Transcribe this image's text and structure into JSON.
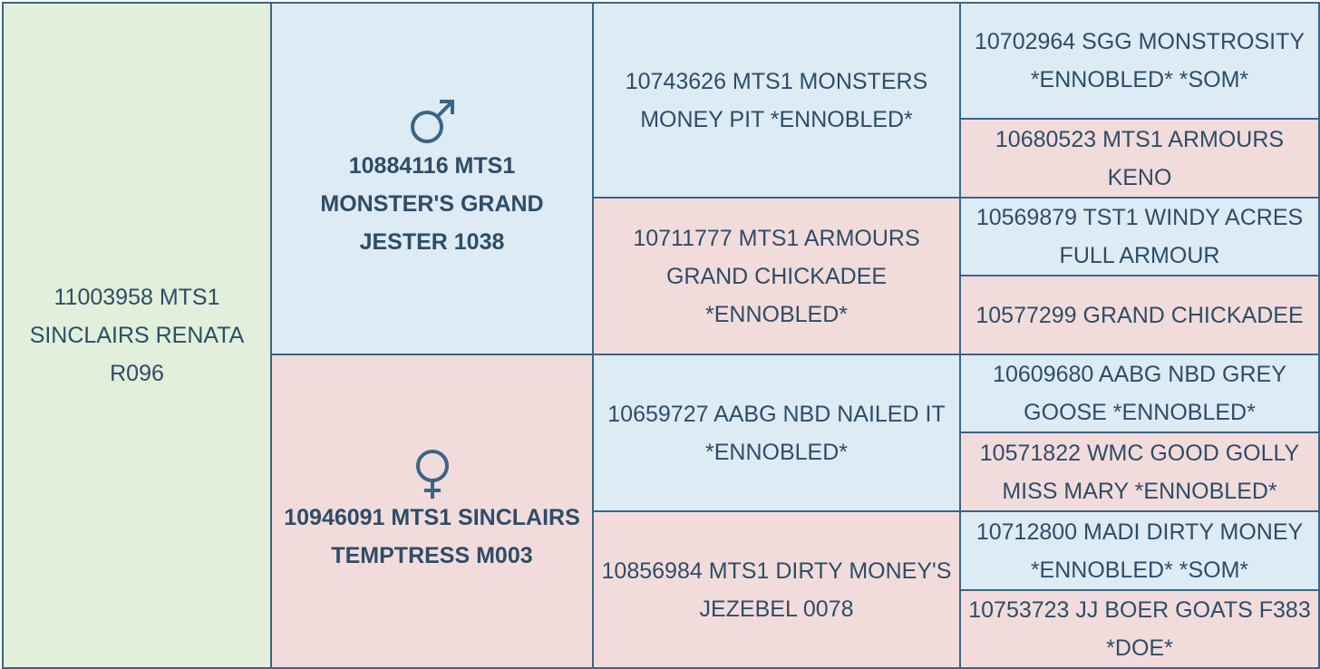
{
  "subject": "11003958 MTS1 SINCLAIRS RENATA R096",
  "parents": [
    "10884116 MTS1 MONSTER'S GRAND JESTER 1038",
    "10946091 MTS1 SINCLAIRS TEMPTRESS M003"
  ],
  "grandparents": [
    "10743626 MTS1 MONSTERS MONEY PIT *ENNOBLED*",
    "10711777 MTS1 ARMOURS GRAND CHICKADEE *ENNOBLED*",
    "10659727 AABG NBD NAILED IT *ENNOBLED*",
    "10856984 MTS1 DIRTY MONEY'S JEZEBEL 0078"
  ],
  "great_grandparents": [
    "10702964 SGG MONSTROSITY *ENNOBLED* *SOM*",
    "10680523 MTS1 ARMOURS KENO",
    "10569879 TST1 WINDY ACRES FULL ARMOUR",
    "10577299 GRAND CHICKADEE",
    "10609680 AABG NBD GREY GOOSE *ENNOBLED*",
    "10571822 WMC GOOD GOLLY MISS MARY *ENNOBLED*",
    "10712800 MADI DIRTY MONEY *ENNOBLED* *SOM*",
    "10753723 JJ BOER GOATS F383 *DOE*"
  ]
}
